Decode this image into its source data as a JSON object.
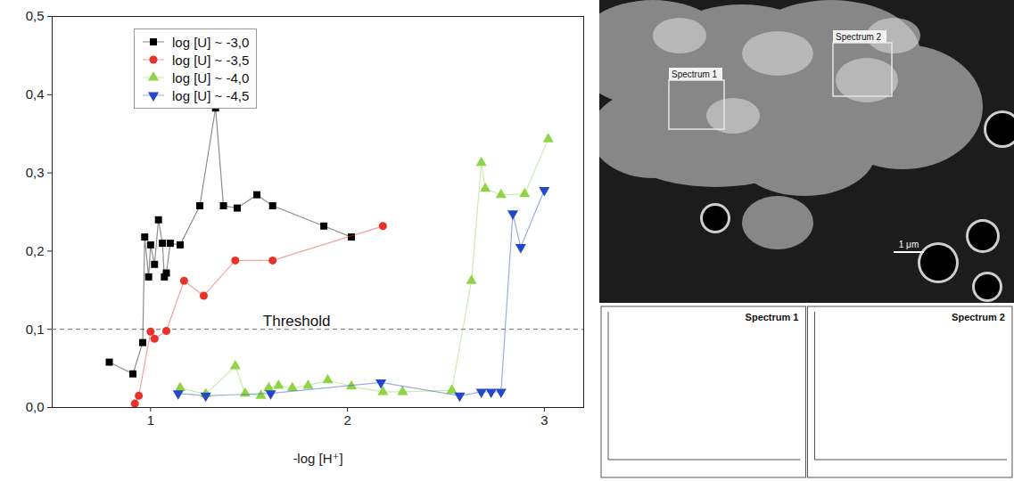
{
  "chart_data": {
    "type": "scatter",
    "x_label": "-log [H⁺]",
    "xlim": [
      0.5,
      3.2
    ],
    "xticks": [
      1,
      2,
      3
    ],
    "ylim": [
      0,
      0.5
    ],
    "yticks": [
      {
        "value": 0,
        "label": "0,0"
      },
      {
        "value": 0.1,
        "label": "0,1"
      },
      {
        "value": 0.2,
        "label": "0,2"
      },
      {
        "value": 0.3,
        "label": "0,3"
      },
      {
        "value": 0.4,
        "label": "0,4"
      },
      {
        "value": 0.5,
        "label": "0,5"
      }
    ],
    "grid": false,
    "legend": "top-left",
    "threshold": {
      "value": 0.1,
      "label": "Threshold",
      "line_style": "dashed"
    },
    "series": [
      {
        "name": "log [U] ~ -3,0",
        "color": "#000000",
        "marker": "square",
        "line_style": "solid",
        "x": [
          0.79,
          0.91,
          0.96,
          0.97,
          0.99,
          1.0,
          1.02,
          1.04,
          1.06,
          1.07,
          1.08,
          1.1,
          1.15,
          1.25,
          1.33,
          1.37,
          1.44,
          1.54,
          1.62,
          1.88,
          2.02
        ],
        "values": [
          0.058,
          0.043,
          0.083,
          0.218,
          0.167,
          0.208,
          0.183,
          0.24,
          0.21,
          0.167,
          0.172,
          0.21,
          0.208,
          0.258,
          0.383,
          0.258,
          0.255,
          0.272,
          0.258,
          0.232,
          0.218
        ]
      },
      {
        "name": "log [U] ~ -3,5",
        "color": "#e8312a",
        "marker": "circle",
        "line_style": "solid",
        "x": [
          0.92,
          0.94,
          1.0,
          1.02,
          1.08,
          1.17,
          1.27,
          1.43,
          1.62,
          2.18
        ],
        "values": [
          0.005,
          0.015,
          0.097,
          0.088,
          0.098,
          0.162,
          0.143,
          0.188,
          0.188,
          0.232
        ]
      },
      {
        "name": "log [U] ~ -4,0",
        "color": "#8fd444",
        "marker": "triangle-up",
        "line_style": "solid",
        "x": [
          1.15,
          1.28,
          1.43,
          1.48,
          1.56,
          1.6,
          1.65,
          1.72,
          1.8,
          1.9,
          2.02,
          2.18,
          2.28,
          2.53,
          2.63,
          2.68,
          2.7,
          2.78,
          2.9,
          3.02
        ],
        "values": [
          0.025,
          0.017,
          0.053,
          0.018,
          0.015,
          0.025,
          0.028,
          0.025,
          0.028,
          0.035,
          0.027,
          0.02,
          0.02,
          0.022,
          0.162,
          0.313,
          0.28,
          0.272,
          0.273,
          0.343
        ]
      },
      {
        "name": "log [U] ~ -4,5",
        "color": "#2347c8",
        "marker": "triangle-down",
        "line_style": "solid",
        "x": [
          1.14,
          1.28,
          1.61,
          2.17,
          2.57,
          2.68,
          2.73,
          2.78,
          2.84,
          2.88,
          3.0
        ],
        "values": [
          0.018,
          0.015,
          0.018,
          0.032,
          0.015,
          0.02,
          0.02,
          0.02,
          0.248,
          0.205,
          0.278
        ]
      }
    ]
  },
  "image_panel": {
    "regions": [
      "Spectrum 1",
      "Spectrum 2"
    ],
    "scale_bar": "1 μm",
    "spectra": [
      "Spectrum 1",
      "Spectrum 2"
    ]
  }
}
